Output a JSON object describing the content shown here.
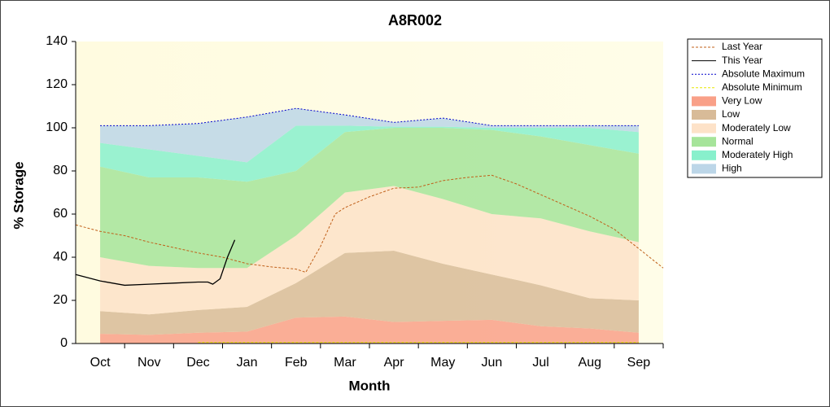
{
  "chart_data": {
    "type": "area",
    "title": "A8R002",
    "x_label": "Month",
    "y_label": "% Storage",
    "xlim": [
      -0.5,
      11.5
    ],
    "ylim": [
      0,
      140
    ],
    "yticks": [
      0,
      20,
      40,
      60,
      80,
      100,
      120,
      140
    ],
    "xticks": [
      {
        "value": 0,
        "label": "Oct"
      },
      {
        "value": 1,
        "label": "Nov"
      },
      {
        "value": 2,
        "label": "Dec"
      },
      {
        "value": 3,
        "label": "Jan"
      },
      {
        "value": 4,
        "label": "Feb"
      },
      {
        "value": 5,
        "label": "Mar"
      },
      {
        "value": 6,
        "label": "Apr"
      },
      {
        "value": 7,
        "label": "May"
      },
      {
        "value": 8,
        "label": "Jun"
      },
      {
        "value": 9,
        "label": "Jul"
      },
      {
        "value": 10,
        "label": "Aug"
      },
      {
        "value": 11,
        "label": "Sep"
      }
    ],
    "legend": "right",
    "grid": false,
    "series": [
      {
        "name": "Last Year",
        "kind": "line",
        "dash": "3 2",
        "color": "#c0601a",
        "x": [
          -0.5,
          0,
          0.5,
          1,
          1.5,
          2,
          2.5,
          3,
          3.5,
          4,
          4.2,
          4.5,
          4.8,
          5,
          5.5,
          6,
          6.5,
          7,
          7.5,
          8,
          8.5,
          9,
          9.5,
          10,
          10.5,
          11,
          11.5
        ],
        "values": [
          55,
          52,
          50,
          47,
          44.5,
          42,
          40,
          37,
          35.5,
          34.5,
          33,
          45,
          60,
          63,
          68,
          72,
          72.5,
          75.5,
          77,
          78,
          74,
          69,
          64,
          59,
          53,
          44,
          35
        ]
      },
      {
        "name": "This Year",
        "kind": "line",
        "dash": "none",
        "color": "#000000",
        "x": [
          -0.5,
          0,
          0.5,
          1,
          1.5,
          2,
          2.2,
          2.3,
          2.45,
          2.6,
          2.75
        ],
        "values": [
          32,
          29,
          27,
          27.5,
          28,
          28.5,
          28.5,
          27.5,
          30,
          40,
          48
        ]
      },
      {
        "name": "Absolute Maximum",
        "kind": "line",
        "dash": "2 2",
        "color": "#0000cc",
        "x": [
          0,
          1,
          2,
          3,
          4,
          5,
          6,
          7,
          8,
          9,
          10,
          11
        ],
        "values": [
          101,
          101,
          102,
          105,
          109,
          106,
          102.5,
          104.5,
          101,
          101,
          101,
          101
        ]
      },
      {
        "name": "Absolute Minimum",
        "kind": "line",
        "dash": "3 2",
        "color": "#e8e800",
        "x": [
          2,
          3,
          4,
          5,
          6,
          7,
          8,
          9,
          10,
          11
        ],
        "values": [
          0.5,
          0.5,
          0.5,
          0.5,
          0.5,
          0.5,
          0.5,
          0.5,
          0.5,
          0.5
        ]
      },
      {
        "name": "Very Low",
        "kind": "band",
        "color": "#f9a088",
        "x": [
          0,
          1,
          2,
          3,
          4,
          5,
          6,
          7,
          8,
          9,
          10,
          11
        ],
        "values": [
          4.5,
          4,
          5,
          5.5,
          12,
          12.5,
          10,
          10.5,
          11,
          8,
          7,
          5
        ]
      },
      {
        "name": "Low",
        "kind": "band",
        "color": "#d8bb98",
        "x": [
          0,
          1,
          2,
          3,
          4,
          5,
          6,
          7,
          8,
          9,
          10,
          11
        ],
        "values": [
          10.5,
          9.5,
          10.5,
          11.5,
          16,
          29.5,
          33,
          26.5,
          21,
          19,
          14,
          15
        ]
      },
      {
        "name": "Moderately Low",
        "kind": "band",
        "color": "#fde2c8",
        "x": [
          0,
          1,
          2,
          3,
          4,
          5,
          6,
          7,
          8,
          9,
          10,
          11
        ],
        "values": [
          25,
          22.5,
          19.5,
          18,
          22,
          28,
          30,
          30,
          28,
          31,
          31,
          27
        ]
      },
      {
        "name": "Normal",
        "kind": "band",
        "color": "#a6e49a",
        "x": [
          0,
          1,
          2,
          3,
          4,
          5,
          6,
          7,
          8,
          9,
          10,
          11
        ],
        "values": [
          42,
          41,
          42,
          40,
          30,
          28,
          27,
          33,
          39,
          38,
          40,
          41
        ]
      },
      {
        "name": "Moderately High",
        "kind": "band",
        "color": "#88f0cc",
        "x": [
          0,
          1,
          2,
          3,
          4,
          5,
          6,
          7,
          8,
          9,
          10,
          11
        ],
        "values": [
          11,
          13,
          10,
          9,
          21,
          3,
          0.5,
          0.5,
          1,
          4,
          8,
          10
        ]
      },
      {
        "name": "High",
        "kind": "band",
        "color": "#bcd6e8",
        "x": [
          0,
          1,
          2,
          3,
          4,
          5,
          6,
          7,
          8,
          9,
          10,
          11
        ],
        "values": [
          8,
          11,
          15,
          21,
          8,
          5,
          2,
          4,
          1,
          1,
          1,
          3
        ]
      }
    ]
  }
}
